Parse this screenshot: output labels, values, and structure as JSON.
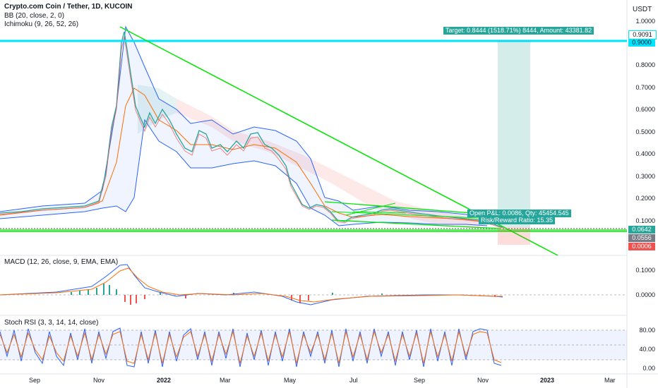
{
  "header": {
    "title": "Crypto.com Coin / Tether, 1D, KUCOIN",
    "bb": "BB (20, close, 2, 0)",
    "ichimoku": "Ichimoku (9, 26, 52, 26)",
    "macd": "MACD (12, 26, close, 9, EMA, EMA)",
    "stoch": "Stoch RSI (3, 3, 14, 14, close)"
  },
  "currency": "USDT",
  "price_axis": [
    "1.0000",
    "0.8000",
    "0.7000",
    "0.6000",
    "0.5000",
    "0.4000",
    "0.3000",
    "0.2000",
    "0.1000"
  ],
  "price_tags": {
    "top": "0.9091",
    "level": "0.9000",
    "last": "0.0642",
    "stop": "0.0556",
    "pnl": "0.0006"
  },
  "macd_axis": [
    "0.1000",
    "0.0000"
  ],
  "stoch_axis": [
    "80.00",
    "40.00",
    "0.00"
  ],
  "x_axis": [
    "Sep",
    "Nov",
    "2022",
    "Mar",
    "May",
    "Jul",
    "Sep",
    "Nov",
    "2023",
    "Mar"
  ],
  "position_box": {
    "target": "Target: 0.8444 (1518.71%) 8444, Amount: 43381.82",
    "open_pnl": "Open P&L: 0.0086, Qty: 45454.545",
    "risk_reward": "Risk/Reward Ratio: 15.35"
  },
  "colors": {
    "up": "#26a69a",
    "down": "#ef5350",
    "bb": "#2962ff",
    "basis": "#ff6d00",
    "trend": "#00e600",
    "level": "#00e5ff",
    "rsi_k": "#2962ff",
    "rsi_d": "#ff6d00"
  },
  "chart_data": {
    "type": "line",
    "title": "Crypto.com Coin / Tether, 1D, KUCOIN",
    "xlabel": "",
    "ylabel": "USDT",
    "x": [
      "2021-08",
      "2021-09",
      "2021-10",
      "2021-11",
      "2021-12",
      "2022-01",
      "2022-02",
      "2022-03",
      "2022-04",
      "2022-05",
      "2022-06",
      "2022-07",
      "2022-08",
      "2022-09",
      "2022-10",
      "2022-11"
    ],
    "series": [
      {
        "name": "close",
        "values": [
          0.13,
          0.14,
          0.16,
          0.9,
          0.55,
          0.45,
          0.42,
          0.47,
          0.44,
          0.2,
          0.12,
          0.12,
          0.16,
          0.12,
          0.11,
          0.065
        ]
      }
    ],
    "ylim": [
      0,
      1.0
    ],
    "horizontal_levels": [
      0.9,
      0.0642,
      0.0556
    ],
    "grid": false
  }
}
